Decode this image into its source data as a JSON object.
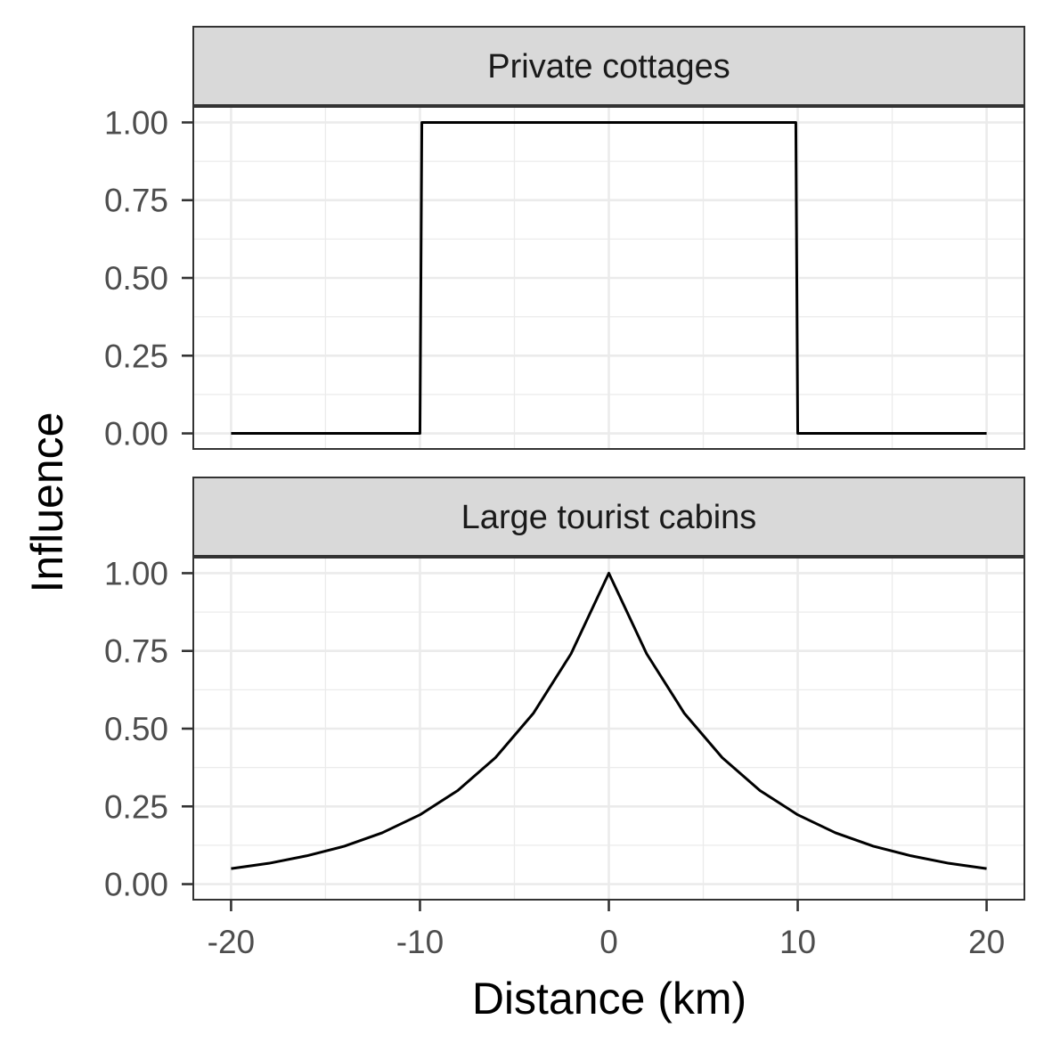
{
  "chart_data": {
    "type": "line",
    "xlabel": "Distance (km)",
    "ylabel": "Influence",
    "xlim": [
      -22,
      22
    ],
    "ylim": [
      -0.05,
      1.05
    ],
    "x_ticks": [
      -20,
      -10,
      0,
      10,
      20
    ],
    "x_tick_labels": [
      "-20",
      "-10",
      "0",
      "10",
      "20"
    ],
    "y_ticks": [
      0,
      0.25,
      0.5,
      0.75,
      1
    ],
    "y_tick_labels": [
      "0.00",
      "0.25",
      "0.50",
      "0.75",
      "1.00"
    ],
    "grid": true,
    "line_color": "#000000",
    "strip_fill": "#d9d9d9",
    "panels": [
      {
        "title": "Private cottages",
        "x": [
          -20,
          -10,
          -9.9,
          9.9,
          10,
          20
        ],
        "y": [
          0,
          0,
          1,
          1,
          0,
          0
        ]
      },
      {
        "title": "Large tourist cabins",
        "x": [
          -20,
          -18,
          -16,
          -14,
          -12,
          -10,
          -8,
          -6,
          -4,
          -2,
          0,
          2,
          4,
          6,
          8,
          10,
          12,
          14,
          16,
          18,
          20
        ],
        "y": [
          0.05,
          0.067,
          0.091,
          0.122,
          0.165,
          0.223,
          0.301,
          0.407,
          0.549,
          0.741,
          1,
          0.741,
          0.549,
          0.407,
          0.301,
          0.223,
          0.165,
          0.122,
          0.091,
          0.067,
          0.05
        ]
      }
    ]
  }
}
